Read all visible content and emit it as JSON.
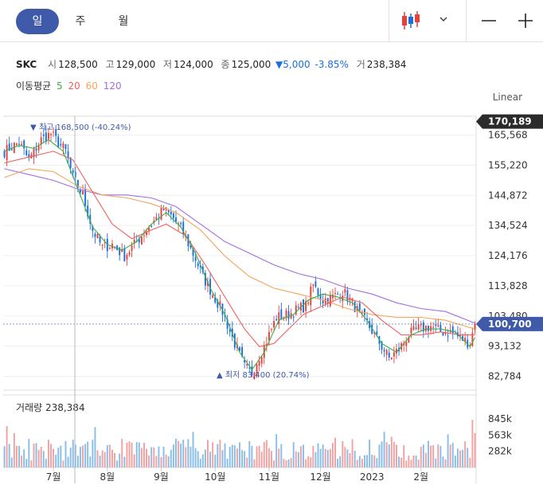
{
  "tabs": [
    {
      "label": "일",
      "active": true
    },
    {
      "label": "주",
      "active": false
    },
    {
      "label": "월",
      "active": false
    }
  ],
  "toolbar": {
    "chart_type_icon": "candlestick-icon",
    "dropdown_icon": "chevron-down-icon",
    "zoom_out": "—",
    "zoom_in": "+"
  },
  "quote": {
    "symbol": "SKC",
    "open_label": "시",
    "open": "128,500",
    "high_label": "고",
    "high": "129,000",
    "low_label": "저",
    "low": "124,000",
    "close_label": "종",
    "close": "125,000",
    "change": "▼5,000",
    "change_pct": "-3.85%",
    "volume_label": "거",
    "volume": "238,384"
  },
  "ma_legend": {
    "label": "이동평균",
    "items": [
      {
        "period": "5",
        "color": "#3fae49"
      },
      {
        "period": "20",
        "color": "#f0605d"
      },
      {
        "period": "60",
        "color": "#f6a35a"
      },
      {
        "period": "120",
        "color": "#a36ee0"
      }
    ]
  },
  "scale_label": "Linear",
  "colors": {
    "up": "#e8413b",
    "down": "#1a6ee0",
    "badge": "#3e5aa8",
    "vol_up": "#f2a0a0",
    "vol_down": "#88bde8"
  },
  "chart_data": {
    "type": "candlestick",
    "yticks": [
      "165,568",
      "155,220",
      "144,872",
      "134,524",
      "124,176",
      "113,828",
      "103,480",
      "93,132",
      "82,784"
    ],
    "ytick_values": [
      165568,
      155220,
      144872,
      134524,
      124176,
      113828,
      103480,
      93132,
      82784
    ],
    "ylim": [
      78000,
      172000
    ],
    "high_badge": "170,189",
    "high_badge_value": 170189,
    "current_badge": "100,700",
    "current_badge_value": 100700,
    "max_annotation": "최고 168,500 (-40.24%)",
    "max_value": 168500,
    "min_annotation": "최저 83,400 (20.74%)",
    "min_value": 83400,
    "xticks": [
      "7월",
      "8월",
      "9월",
      "10월",
      "11월",
      "12월",
      "2023",
      "2월"
    ],
    "close_path": [
      [
        0,
        160
      ],
      [
        6,
        163
      ],
      [
        10,
        157
      ],
      [
        15,
        164
      ],
      [
        19,
        166
      ],
      [
        25,
        160
      ],
      [
        28,
        151
      ],
      [
        32,
        145
      ],
      [
        36,
        133
      ],
      [
        40,
        127
      ],
      [
        44,
        128
      ],
      [
        49,
        124
      ],
      [
        55,
        130
      ],
      [
        61,
        136
      ],
      [
        65,
        140
      ],
      [
        69,
        137
      ],
      [
        73,
        132
      ],
      [
        78,
        123
      ],
      [
        81,
        117
      ],
      [
        85,
        111
      ],
      [
        89,
        105
      ],
      [
        93,
        96
      ],
      [
        98,
        86
      ],
      [
        101,
        84
      ],
      [
        103,
        88
      ],
      [
        106,
        93
      ],
      [
        111,
        103
      ],
      [
        116,
        104
      ],
      [
        120,
        106
      ],
      [
        123,
        107
      ],
      [
        126,
        114
      ],
      [
        130,
        109
      ],
      [
        134,
        110
      ],
      [
        138,
        112
      ],
      [
        142,
        108
      ],
      [
        145,
        104
      ],
      [
        148,
        101
      ],
      [
        151,
        97
      ],
      [
        154,
        93
      ],
      [
        157,
        89
      ],
      [
        161,
        92
      ],
      [
        165,
        97
      ],
      [
        169,
        99
      ],
      [
        174,
        100
      ],
      [
        178,
        98
      ],
      [
        182,
        98
      ],
      [
        186,
        96
      ],
      [
        190,
        94
      ],
      [
        192,
        101
      ]
    ],
    "ma5": [
      [
        0,
        160
      ],
      [
        6,
        162
      ],
      [
        12,
        161
      ],
      [
        18,
        164
      ],
      [
        24,
        160
      ],
      [
        30,
        147
      ],
      [
        36,
        134
      ],
      [
        42,
        128
      ],
      [
        48,
        126
      ],
      [
        54,
        129
      ],
      [
        60,
        135
      ],
      [
        66,
        139
      ],
      [
        72,
        134
      ],
      [
        78,
        125
      ],
      [
        84,
        113
      ],
      [
        90,
        104
      ],
      [
        96,
        91
      ],
      [
        101,
        85
      ],
      [
        106,
        91
      ],
      [
        112,
        102
      ],
      [
        118,
        104
      ],
      [
        124,
        109
      ],
      [
        130,
        111
      ],
      [
        136,
        110
      ],
      [
        142,
        108
      ],
      [
        148,
        102
      ],
      [
        154,
        94
      ],
      [
        160,
        91
      ],
      [
        166,
        97
      ],
      [
        172,
        99
      ],
      [
        178,
        99
      ],
      [
        184,
        98
      ],
      [
        190,
        93
      ],
      [
        192,
        96
      ]
    ],
    "ma20": [
      [
        0,
        156
      ],
      [
        10,
        158
      ],
      [
        20,
        160
      ],
      [
        28,
        157
      ],
      [
        36,
        146
      ],
      [
        44,
        135
      ],
      [
        52,
        130
      ],
      [
        60,
        133
      ],
      [
        66,
        135
      ],
      [
        74,
        131
      ],
      [
        82,
        121
      ],
      [
        90,
        110
      ],
      [
        98,
        99
      ],
      [
        104,
        93
      ],
      [
        110,
        94
      ],
      [
        116,
        99
      ],
      [
        122,
        104
      ],
      [
        130,
        107
      ],
      [
        138,
        110
      ],
      [
        146,
        108
      ],
      [
        154,
        102
      ],
      [
        162,
        97
      ],
      [
        170,
        97
      ],
      [
        178,
        98
      ],
      [
        186,
        97
      ],
      [
        192,
        97
      ]
    ],
    "ma60": [
      [
        0,
        151
      ],
      [
        10,
        154
      ],
      [
        20,
        153
      ],
      [
        30,
        148
      ],
      [
        40,
        145
      ],
      [
        50,
        144
      ],
      [
        60,
        142
      ],
      [
        70,
        139
      ],
      [
        80,
        133
      ],
      [
        90,
        124
      ],
      [
        100,
        117
      ],
      [
        110,
        113
      ],
      [
        120,
        111
      ],
      [
        130,
        109
      ],
      [
        140,
        106
      ],
      [
        150,
        104
      ],
      [
        160,
        103
      ],
      [
        170,
        103
      ],
      [
        180,
        102
      ],
      [
        192,
        99
      ]
    ],
    "ma120": [
      [
        0,
        154
      ],
      [
        10,
        152
      ],
      [
        20,
        150
      ],
      [
        30,
        147
      ],
      [
        40,
        145
      ],
      [
        50,
        145
      ],
      [
        60,
        144
      ],
      [
        70,
        141
      ],
      [
        80,
        135
      ],
      [
        90,
        129
      ],
      [
        100,
        125
      ],
      [
        110,
        121
      ],
      [
        120,
        118
      ],
      [
        130,
        116
      ],
      [
        140,
        113
      ],
      [
        150,
        111
      ],
      [
        160,
        108
      ],
      [
        170,
        106
      ],
      [
        180,
        105
      ],
      [
        192,
        101
      ]
    ],
    "volume_yticks": [
      "845k",
      "563k",
      "282k"
    ],
    "volume_ytick_values": [
      845000,
      563000,
      282000
    ],
    "volume_current": "238,384",
    "volume_title": "거래량"
  }
}
